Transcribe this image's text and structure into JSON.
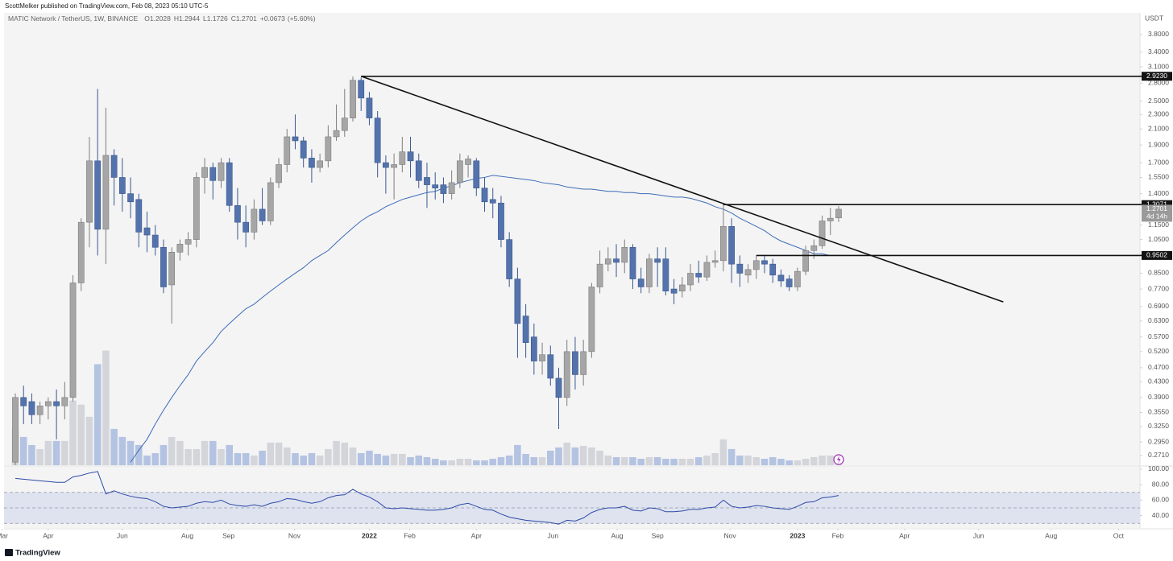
{
  "header": {
    "publisher": "ScottMelker published on TradingView.com, Feb 08, 2023 05:10 UTC-5"
  },
  "footer": {
    "brand": "TradingView"
  },
  "chart_data": {
    "type": "candlestick",
    "symbol": "MATIC Network / TetherUS, 1W, BINANCE",
    "legend_labels": [
      "O",
      "H",
      "L",
      "C"
    ],
    "change": "+0.0673",
    "change_pct": "(+5.60%)",
    "currency": "USDT",
    "countdown": "4d 14h",
    "log_scale": true,
    "grid": false,
    "up_color": "#a6a6a6",
    "down_color": "#5473ac",
    "xlim": [
      -1.37,
      136.6
    ],
    "xticks": [
      {
        "value": -1.6,
        "label": "Mar"
      },
      {
        "value": 4.0,
        "label": "Apr"
      },
      {
        "value": 13.0,
        "label": "Jun"
      },
      {
        "value": 20.9,
        "label": "Aug"
      },
      {
        "value": 25.9,
        "label": "Sep"
      },
      {
        "value": 33.9,
        "label": "Nov"
      },
      {
        "value": 43.0,
        "label": "2022"
      },
      {
        "value": 47.9,
        "label": "Feb"
      },
      {
        "value": 56.0,
        "label": "Apr"
      },
      {
        "value": 65.3,
        "label": "Jun"
      },
      {
        "value": 73.1,
        "label": "Aug"
      },
      {
        "value": 78.0,
        "label": "Sep"
      },
      {
        "value": 86.8,
        "label": "Nov"
      },
      {
        "value": 95.0,
        "label": "2023"
      },
      {
        "value": 99.9,
        "label": "Feb"
      },
      {
        "value": 108.0,
        "label": "Apr"
      },
      {
        "value": 117.0,
        "label": "Jun"
      },
      {
        "value": 125.8,
        "label": "Aug"
      },
      {
        "value": 134.0,
        "label": "Oct"
      }
    ],
    "ylim": [
      0.255,
      4.35
    ],
    "yticks": [
      {
        "value": 3.8,
        "label": "3.8000"
      },
      {
        "value": 3.4,
        "label": "3.4000"
      },
      {
        "value": 3.1,
        "label": "3.1000"
      },
      {
        "value": 2.8,
        "label": "2.8000"
      },
      {
        "value": 2.5,
        "label": "2.5000"
      },
      {
        "value": 2.3,
        "label": "2.3000"
      },
      {
        "value": 2.1,
        "label": "2.1000"
      },
      {
        "value": 1.9,
        "label": "1.9000"
      },
      {
        "value": 1.7,
        "label": "1.7000"
      },
      {
        "value": 1.55,
        "label": "1.5500"
      },
      {
        "value": 1.4,
        "label": "1.4000"
      },
      {
        "value": 1.15,
        "label": "1.1500"
      },
      {
        "value": 1.05,
        "label": "1.0500"
      },
      {
        "value": 0.85,
        "label": "0.8500"
      },
      {
        "value": 0.77,
        "label": "0.7700"
      },
      {
        "value": 0.69,
        "label": "0.6900"
      },
      {
        "value": 0.63,
        "label": "0.6300"
      },
      {
        "value": 0.57,
        "label": "0.5700"
      },
      {
        "value": 0.52,
        "label": "0.5200"
      },
      {
        "value": 0.47,
        "label": "0.4700"
      },
      {
        "value": 0.43,
        "label": "0.4300"
      },
      {
        "value": 0.39,
        "label": "0.3900"
      },
      {
        "value": 0.355,
        "label": "0.3550"
      },
      {
        "value": 0.325,
        "label": "0.3250"
      },
      {
        "value": 0.295,
        "label": "0.2950"
      },
      {
        "value": 0.271,
        "label": "0.2710"
      }
    ],
    "candles": [
      [
        0.26,
        0.4,
        0.24,
        0.39
      ],
      [
        0.39,
        0.42,
        0.33,
        0.37
      ],
      [
        0.38,
        0.4,
        0.33,
        0.35
      ],
      [
        0.35,
        0.38,
        0.33,
        0.37
      ],
      [
        0.37,
        0.39,
        0.34,
        0.38
      ],
      [
        0.38,
        0.41,
        0.3,
        0.37
      ],
      [
        0.37,
        0.43,
        0.34,
        0.39
      ],
      [
        0.39,
        0.84,
        0.38,
        0.8
      ],
      [
        0.8,
        1.2,
        0.76,
        1.17
      ],
      [
        1.17,
        2.0,
        1.0,
        1.72
      ],
      [
        1.72,
        2.7,
        0.95,
        1.12
      ],
      [
        1.12,
        2.4,
        0.9,
        1.78
      ],
      [
        1.78,
        1.85,
        1.3,
        1.55
      ],
      [
        1.55,
        1.75,
        1.25,
        1.4
      ],
      [
        1.4,
        1.55,
        1.2,
        1.33
      ],
      [
        1.35,
        1.4,
        1.0,
        1.1
      ],
      [
        1.13,
        1.25,
        0.97,
        1.08
      ],
      [
        1.08,
        1.15,
        0.95,
        1.0
      ],
      [
        1.0,
        1.05,
        0.75,
        0.78
      ],
      [
        0.79,
        1.0,
        0.62,
        0.97
      ],
      [
        0.97,
        1.05,
        0.92,
        1.02
      ],
      [
        1.02,
        1.1,
        0.95,
        1.05
      ],
      [
        1.05,
        1.6,
        1.0,
        1.55
      ],
      [
        1.55,
        1.75,
        1.4,
        1.65
      ],
      [
        1.65,
        1.7,
        1.35,
        1.52
      ],
      [
        1.52,
        1.75,
        1.45,
        1.7
      ],
      [
        1.7,
        1.75,
        1.25,
        1.3
      ],
      [
        1.3,
        1.45,
        1.05,
        1.17
      ],
      [
        1.17,
        1.3,
        1.0,
        1.1
      ],
      [
        1.1,
        1.35,
        1.05,
        1.27
      ],
      [
        1.27,
        1.45,
        1.15,
        1.18
      ],
      [
        1.18,
        1.55,
        1.15,
        1.5
      ],
      [
        1.5,
        1.75,
        1.45,
        1.68
      ],
      [
        1.68,
        2.1,
        1.6,
        2.0
      ],
      [
        2.0,
        2.3,
        1.85,
        1.95
      ],
      [
        1.95,
        2.0,
        1.65,
        1.75
      ],
      [
        1.75,
        1.85,
        1.5,
        1.65
      ],
      [
        1.65,
        1.8,
        1.6,
        1.72
      ],
      [
        1.72,
        2.15,
        1.65,
        2.0
      ],
      [
        2.0,
        2.45,
        1.95,
        2.08
      ],
      [
        2.08,
        2.7,
        2.0,
        2.25
      ],
      [
        2.25,
        2.92,
        2.2,
        2.85
      ],
      [
        2.85,
        2.9,
        2.35,
        2.55
      ],
      [
        2.55,
        2.65,
        2.15,
        2.25
      ],
      [
        2.25,
        2.35,
        1.55,
        1.7
      ],
      [
        1.7,
        1.78,
        1.4,
        1.65
      ],
      [
        1.65,
        1.8,
        1.35,
        1.68
      ],
      [
        1.68,
        2.0,
        1.6,
        1.82
      ],
      [
        1.82,
        2.0,
        1.55,
        1.72
      ],
      [
        1.72,
        1.8,
        1.45,
        1.52
      ],
      [
        1.55,
        1.7,
        1.28,
        1.48
      ],
      [
        1.48,
        1.6,
        1.35,
        1.45
      ],
      [
        1.48,
        1.55,
        1.32,
        1.4
      ],
      [
        1.4,
        1.62,
        1.35,
        1.5
      ],
      [
        1.5,
        1.8,
        1.45,
        1.72
      ],
      [
        1.68,
        1.78,
        1.55,
        1.74
      ],
      [
        1.72,
        1.75,
        1.38,
        1.45
      ],
      [
        1.45,
        1.55,
        1.25,
        1.33
      ],
      [
        1.35,
        1.45,
        1.2,
        1.32
      ],
      [
        1.32,
        1.38,
        1.0,
        1.05
      ],
      [
        1.05,
        1.1,
        0.78,
        0.82
      ],
      [
        0.82,
        0.88,
        0.5,
        0.62
      ],
      [
        0.65,
        0.7,
        0.5,
        0.55
      ],
      [
        0.57,
        0.62,
        0.45,
        0.49
      ],
      [
        0.49,
        0.55,
        0.45,
        0.51
      ],
      [
        0.51,
        0.54,
        0.42,
        0.44
      ],
      [
        0.44,
        0.47,
        0.32,
        0.39
      ],
      [
        0.39,
        0.56,
        0.37,
        0.52
      ],
      [
        0.52,
        0.57,
        0.41,
        0.45
      ],
      [
        0.45,
        0.56,
        0.42,
        0.52
      ],
      [
        0.52,
        0.8,
        0.5,
        0.78
      ],
      [
        0.78,
        0.98,
        0.75,
        0.9
      ],
      [
        0.9,
        1.0,
        0.86,
        0.93
      ],
      [
        0.93,
        1.02,
        0.83,
        0.91
      ],
      [
        0.91,
        1.05,
        0.85,
        1.0
      ],
      [
        1.0,
        1.02,
        0.77,
        0.82
      ],
      [
        0.82,
        0.88,
        0.75,
        0.78
      ],
      [
        0.78,
        0.96,
        0.75,
        0.93
      ],
      [
        0.93,
        1.0,
        0.78,
        0.91
      ],
      [
        0.93,
        1.0,
        0.74,
        0.76
      ],
      [
        0.77,
        0.82,
        0.7,
        0.75
      ],
      [
        0.76,
        0.83,
        0.73,
        0.79
      ],
      [
        0.79,
        0.9,
        0.76,
        0.85
      ],
      [
        0.85,
        0.92,
        0.8,
        0.83
      ],
      [
        0.83,
        0.95,
        0.81,
        0.91
      ],
      [
        0.91,
        0.98,
        0.88,
        0.92
      ],
      [
        0.92,
        1.31,
        0.86,
        1.14
      ],
      [
        1.14,
        1.2,
        0.8,
        0.9
      ],
      [
        0.9,
        0.95,
        0.78,
        0.85
      ],
      [
        0.84,
        0.9,
        0.8,
        0.87
      ],
      [
        0.87,
        0.95,
        0.82,
        0.92
      ],
      [
        0.92,
        0.95,
        0.85,
        0.9
      ],
      [
        0.9,
        0.93,
        0.8,
        0.84
      ],
      [
        0.84,
        0.87,
        0.78,
        0.81
      ],
      [
        0.82,
        0.84,
        0.76,
        0.78
      ],
      [
        0.78,
        0.88,
        0.76,
        0.86
      ],
      [
        0.86,
        1.01,
        0.84,
        0.98
      ],
      [
        0.98,
        1.05,
        0.93,
        1.01
      ],
      [
        1.01,
        1.22,
        0.99,
        1.18
      ],
      [
        1.18,
        1.28,
        1.08,
        1.2
      ],
      [
        1.2028,
        1.2944,
        1.1726,
        1.2701
      ]
    ],
    "volume": [
      45,
      35,
      25,
      20,
      30,
      30,
      30,
      80,
      75,
      60,
      125,
      142,
      45,
      35,
      30,
      25,
      12,
      15,
      25,
      35,
      30,
      20,
      20,
      30,
      30,
      20,
      25,
      15,
      15,
      12,
      18,
      28,
      28,
      22,
      15,
      12,
      15,
      12,
      20,
      30,
      28,
      22,
      15,
      18,
      14,
      12,
      14,
      14,
      10,
      12,
      10,
      8,
      6,
      6,
      8,
      8,
      6,
      6,
      8,
      10,
      12,
      25,
      14,
      10,
      10,
      18,
      22,
      28,
      22,
      24,
      22,
      18,
      12,
      10,
      10,
      10,
      8,
      10,
      10,
      8,
      8,
      8,
      8,
      10,
      12,
      15,
      32,
      20,
      12,
      12,
      10,
      8,
      10,
      8,
      6,
      6,
      8,
      10,
      12,
      12,
      10
    ],
    "volume_lim": [
      0,
      560
    ],
    "volume_up_color": "#d3d5da",
    "volume_down_color": "#b4c3e2",
    "ma": {
      "color": "#3d6cb8",
      "values": [
        null,
        null,
        null,
        null,
        null,
        null,
        null,
        null,
        null,
        null,
        null,
        null,
        null,
        null,
        0.26,
        0.28,
        0.3,
        0.33,
        0.36,
        0.39,
        0.42,
        0.45,
        0.49,
        0.52,
        0.55,
        0.59,
        0.62,
        0.65,
        0.68,
        0.7,
        0.73,
        0.76,
        0.79,
        0.82,
        0.85,
        0.88,
        0.92,
        0.95,
        0.98,
        1.03,
        1.08,
        1.13,
        1.18,
        1.22,
        1.25,
        1.29,
        1.32,
        1.35,
        1.37,
        1.39,
        1.41,
        1.42,
        1.45,
        1.47,
        1.5,
        1.52,
        1.54,
        1.55,
        1.57,
        1.56,
        1.55,
        1.54,
        1.53,
        1.52,
        1.5,
        1.49,
        1.48,
        1.46,
        1.45,
        1.44,
        1.44,
        1.43,
        1.42,
        1.42,
        1.41,
        1.41,
        1.4,
        1.4,
        1.39,
        1.38,
        1.37,
        1.37,
        1.36,
        1.34,
        1.32,
        1.29,
        1.27,
        1.24,
        1.2,
        1.17,
        1.14,
        1.11,
        1.07,
        1.04,
        1.02,
        1.0,
        0.98,
        0.96,
        0.96,
        0.95,
        0.95
      ]
    },
    "trendline": {
      "x": [
        42,
        120
      ],
      "y": [
        2.923,
        0.71
      ]
    },
    "levels": [
      {
        "from": 42,
        "value": {
          "value": 2.923,
          "label": "2.9230"
        }
      },
      {
        "from": 86,
        "value": 1.3071
      },
      {
        "from": 90,
        "value": 0.9502
      }
    ],
    "rsi": {
      "color": "#2e4aa8",
      "ylim": [
        24,
        103
      ],
      "yticks": [
        {
          "value": 100,
          "label": "100.00"
        },
        {
          "value": 80,
          "label": "80.00"
        },
        {
          "value": 60,
          "label": "60.00"
        },
        {
          "value": 40,
          "label": "40.00"
        }
      ],
      "levels": [
        70,
        50,
        30
      ],
      "values": [
        88,
        87,
        86,
        85,
        84,
        83,
        83,
        90,
        92,
        95,
        97,
        68,
        72,
        68,
        65,
        63,
        62,
        58,
        52,
        50,
        51,
        52,
        56,
        58,
        57,
        60,
        55,
        53,
        52,
        54,
        52,
        56,
        58,
        62,
        61,
        58,
        56,
        58,
        63,
        66,
        67,
        74,
        68,
        64,
        58,
        50,
        49,
        50,
        49,
        48,
        47,
        47,
        48,
        50,
        54,
        56,
        52,
        48,
        47,
        42,
        38,
        36,
        34,
        33,
        32,
        31,
        29,
        34,
        33,
        37,
        44,
        48,
        50,
        50,
        52,
        47,
        46,
        50,
        49,
        45,
        45,
        46,
        48,
        48,
        50,
        51,
        60,
        52,
        50,
        51,
        53,
        52,
        50,
        49,
        48,
        52,
        57,
        58,
        63,
        64,
        66
      ]
    }
  }
}
